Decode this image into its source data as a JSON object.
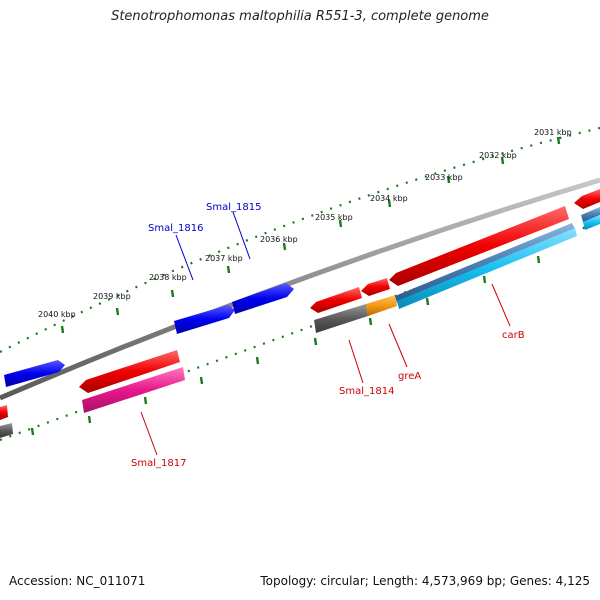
{
  "title": "Stenotrophomonas maltophilia R551-3, complete genome",
  "footer": {
    "accession": "Accession: NC_011071",
    "stats": "Topology: circular; Length: 4,573,969 bp; Genes: 4,125"
  },
  "colors": {
    "backbone": "#8a8a8a",
    "tick": "#1a7a1a",
    "forward_gene": "#0a0af0",
    "reverse_gene": "#e80000",
    "pink_gene": "#e8178a",
    "grey_gene": "#666666",
    "orange_gene": "#f29a12",
    "cyan_gene": "#16c0f0",
    "steel_gene": "#4a7fb5",
    "forward_label": "#0000cc",
    "reverse_label": "#cc0000"
  },
  "ticks": [
    {
      "label": "2031 kbp"
    },
    {
      "label": "2032 kbp"
    },
    {
      "label": "2033 kbp"
    },
    {
      "label": "2034 kbp"
    },
    {
      "label": "2035 kbp"
    },
    {
      "label": "2036 kbp"
    },
    {
      "label": "2037 kbp"
    },
    {
      "label": "2038 kbp"
    },
    {
      "label": "2039 kbp"
    },
    {
      "label": "2040 kbp"
    }
  ],
  "gene_labels": [
    {
      "text": "Smal_1815",
      "strand": "forward"
    },
    {
      "text": "Smal_1816",
      "strand": "forward"
    },
    {
      "text": "Smal_1814",
      "strand": "reverse"
    },
    {
      "text": "greA",
      "strand": "reverse"
    },
    {
      "text": "carB",
      "strand": "reverse"
    },
    {
      "text": "Smal_1817",
      "strand": "reverse"
    }
  ]
}
